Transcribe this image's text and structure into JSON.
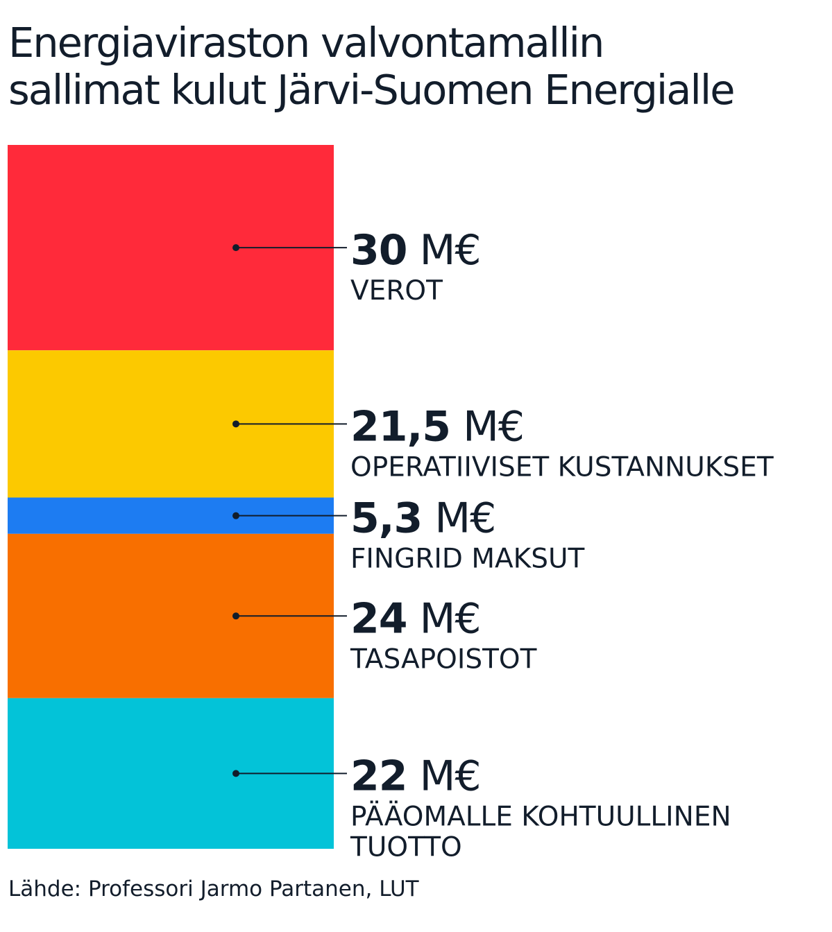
{
  "title_line1": "Energiaviraston valvontamallin",
  "title_line2": "sallimat kulut Järvi-Suomen Energialle",
  "source": "Lähde: Professori Jarmo Partanen, LUT",
  "chart_data": {
    "type": "bar",
    "stacked": true,
    "orientation": "vertical",
    "unit": "M€",
    "grid": false,
    "segments": [
      {
        "value": 30,
        "value_label": "30 M€",
        "category_label": [
          "VEROT"
        ],
        "color": "#ff2a3a"
      },
      {
        "value": 21.5,
        "value_label": "21,5 M€",
        "category_label": [
          "OPERATIIVISET KUSTANNUKSET"
        ],
        "color": "#fcc900"
      },
      {
        "value": 5.3,
        "value_label": "5,3 M€",
        "category_label": [
          "FINGRID MAKSUT"
        ],
        "color": "#1d7cf2"
      },
      {
        "value": 24,
        "value_label": "24 M€",
        "category_label": [
          "TASAPOISTOT"
        ],
        "color": "#f86f00"
      },
      {
        "value": 22,
        "value_label": "22 M€",
        "category_label": [
          "PÄÄOMALLE KOHTUULLINEN",
          "TUOTTO"
        ],
        "color": "#03c3d8"
      }
    ]
  }
}
